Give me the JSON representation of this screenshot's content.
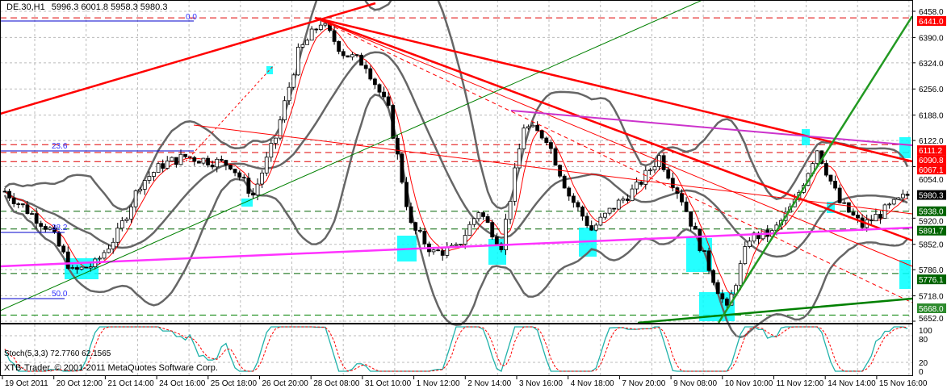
{
  "header": {
    "symbol": "DE.30,H1",
    "ohlc": "5996.3 6001.8 5958.3 5980.3"
  },
  "watermark": "XTB-Trader, © 2001-2011 MetaQuotes Software Corp.",
  "fib_labels": [
    "0.0",
    "23.6",
    "38.2",
    "50.0"
  ],
  "chart_data": {
    "type": "candlestick",
    "price_axis": {
      "ticks": [
        6458.0,
        6390.0,
        6324.0,
        6256.0,
        6188.0,
        6122.0,
        6054.0,
        5920.0,
        5852.0,
        5786.0,
        5718.0,
        5652.0
      ],
      "range": [
        5652.0,
        6458.0
      ]
    },
    "time_axis": {
      "labels": [
        "19 Oct 2011",
        "20 Oct 12:00",
        "21 Oct 14:00",
        "24 Oct 16:00",
        "25 Oct 18:00",
        "26 Oct 20:00",
        "28 Oct 08:00",
        "31 Oct 10:00",
        "1 Nov 12:00",
        "2 Nov 14:00",
        "3 Nov 16:00",
        "4 Nov 18:00",
        "7 Nov 20:00",
        "9 Nov 08:00",
        "10 Nov 10:00",
        "11 Nov 12:00",
        "14 Nov 14:00",
        "15 Nov 16:00"
      ]
    },
    "approx_closes": [
      5990,
      5940,
      5890,
      5780,
      5800,
      5880,
      6010,
      6060,
      6080,
      6070,
      6060,
      5980,
      6130,
      6350,
      6430,
      6350,
      6320,
      6200,
      5900,
      5830,
      5840,
      5940,
      5850,
      6160,
      6130,
      5980,
      5890,
      5950,
      6000,
      6080,
      5970,
      5820,
      5680,
      5870,
      5880,
      5960,
      6100,
      5960,
      5900,
      5940,
      5980
    ],
    "price_levels": [
      {
        "label": "6441.0",
        "price": 6441.0,
        "color": "#ff0000",
        "line": "#e00000"
      },
      {
        "label": "6111.2",
        "price": 6111.2,
        "color": "#ff0000",
        "line": "#e00000"
      },
      {
        "label": "6090.8",
        "price": 6090.8,
        "color": "#ff0000",
        "line": "#e00000"
      },
      {
        "label": "6067.1",
        "price": 6067.1,
        "color": "#ff0000",
        "line": "#e00000"
      },
      {
        "label": "5938.0",
        "price": 5938.0,
        "color": "#006400",
        "line": "#006400"
      },
      {
        "label": "5891.7",
        "price": 5891.7,
        "color": "#006400",
        "line": "#006400"
      },
      {
        "label": "5776.1",
        "price": 5776.1,
        "color": "#006400",
        "line": "#006400"
      },
      {
        "label": "5668.0",
        "price": 5668.0,
        "color": "#2e8b2e",
        "line": "#008000"
      }
    ],
    "current_price": {
      "label": "5980.3",
      "price": 5980.3,
      "color": "#000000"
    },
    "stochastic": {
      "label": "Stoch(5,3,3) 72.7760 62.1565",
      "ticks": [
        "100",
        "80",
        "20",
        "0"
      ],
      "main_color": "#20b2aa",
      "signal_color": "#ff0000"
    }
  }
}
